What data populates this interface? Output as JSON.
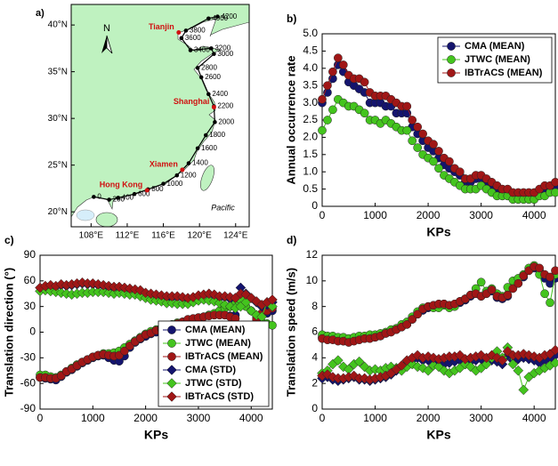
{
  "chart_data": [
    {
      "type": "map",
      "label": "a)",
      "north": "N",
      "xlim": [
        105.8,
        125.5
      ],
      "ylim": [
        18.4,
        42.2
      ],
      "xticks": [
        {
          "value": 108,
          "label": "108°E"
        },
        {
          "value": 112,
          "label": "112°E"
        },
        {
          "value": 116,
          "label": "116°E"
        },
        {
          "value": 120,
          "label": "120°E"
        },
        {
          "value": 124,
          "label": "124°E"
        }
      ],
      "yticks": [
        {
          "value": 20,
          "label": "20°N"
        },
        {
          "value": 25,
          "label": "25°N"
        },
        {
          "value": 30,
          "label": "30°N"
        },
        {
          "value": 35,
          "label": "35°N"
        },
        {
          "value": 40,
          "label": "40°N"
        }
      ],
      "land_color": "#bff2c0",
      "place_color": "#d01010",
      "places": [
        {
          "name": "Tianjin",
          "lon": 117.7,
          "lat": 39.2
        },
        {
          "name": "Shanghai",
          "lon": 121.6,
          "lat": 31.2
        },
        {
          "name": "Xiamen",
          "lon": 118.1,
          "lat": 24.5
        },
        {
          "name": "Hong Kong",
          "lon": 114.2,
          "lat": 22.3
        }
      ],
      "kp": {
        "values": [
          0,
          200,
          400,
          600,
          800,
          1000,
          1200,
          1400,
          1600,
          1800,
          2000,
          2200,
          2400,
          2600,
          2800,
          3000,
          3200,
          3400,
          3600,
          3800,
          4000,
          4200
        ],
        "lon": [
          108.3,
          110.0,
          111.0,
          112.8,
          114.3,
          116.0,
          117.5,
          118.8,
          119.8,
          120.7,
          121.7,
          121.6,
          121.0,
          120.2,
          119.8,
          121.6,
          121.3,
          119.0,
          118.0,
          118.5,
          121.0,
          122.0
        ],
        "lat": [
          21.6,
          21.3,
          21.5,
          21.9,
          22.4,
          23.0,
          23.9,
          25.2,
          26.8,
          28.2,
          29.6,
          31.3,
          32.6,
          34.4,
          35.4,
          36.9,
          37.5,
          37.3,
          38.6,
          39.4,
          40.7,
          40.9
        ]
      },
      "annotation": {
        "text": "Pacific",
        "lon": 122.6,
        "lat": 20.4
      }
    },
    {
      "type": "line",
      "label": "b)",
      "xlabel": "KPs",
      "ylabel": "Annual occurrence rate",
      "legend": "upper right",
      "xlim": [
        0,
        4400
      ],
      "xticks": [
        0,
        1000,
        2000,
        3000,
        4000
      ],
      "ylim": [
        0,
        5
      ],
      "yticks": [
        0,
        0.5,
        {
          "value": 1,
          "label": "1.0"
        },
        1.5,
        {
          "value": 2,
          "label": "2.0"
        },
        2.5,
        {
          "value": 3,
          "label": "3.0"
        },
        3.5,
        {
          "value": 4,
          "label": "4.0"
        },
        4.5,
        {
          "value": 5,
          "label": "5.0"
        }
      ],
      "x": [
        0,
        100,
        200,
        300,
        400,
        500,
        600,
        700,
        800,
        900,
        1000,
        1100,
        1200,
        1300,
        1400,
        1500,
        1600,
        1700,
        1800,
        1900,
        2000,
        2100,
        2200,
        2300,
        2400,
        2500,
        2600,
        2700,
        2800,
        2900,
        3000,
        3100,
        3200,
        3300,
        3400,
        3500,
        3600,
        3700,
        3800,
        3900,
        4000,
        4100,
        4200,
        4300,
        4400
      ],
      "series": [
        {
          "name": "CMA (MEAN)",
          "color": "#14146e",
          "marker": "circle",
          "values": [
            3.0,
            3.3,
            3.7,
            4.1,
            3.9,
            3.6,
            3.5,
            3.4,
            3.3,
            3.0,
            3.0,
            3.0,
            2.9,
            2.9,
            2.7,
            2.7,
            2.7,
            2.3,
            2.1,
            1.9,
            1.7,
            1.6,
            1.4,
            1.2,
            1.1,
            1.0,
            0.9,
            0.7,
            0.7,
            0.8,
            0.8,
            0.7,
            0.6,
            0.5,
            0.4,
            0.4,
            0.3,
            0.3,
            0.3,
            0.3,
            0.3,
            0.4,
            0.5,
            0.5,
            0.6
          ]
        },
        {
          "name": "JTWC (MEAN)",
          "color": "#44c41e",
          "marker": "circle",
          "values": [
            2.2,
            2.5,
            2.8,
            3.1,
            3.0,
            2.9,
            2.9,
            2.8,
            2.7,
            2.5,
            2.5,
            2.4,
            2.5,
            2.4,
            2.3,
            2.2,
            2.2,
            1.9,
            1.7,
            1.5,
            1.4,
            1.3,
            1.1,
            0.9,
            0.8,
            0.7,
            0.6,
            0.5,
            0.5,
            0.5,
            0.6,
            0.5,
            0.4,
            0.3,
            0.3,
            0.3,
            0.2,
            0.2,
            0.2,
            0.2,
            0.2,
            0.3,
            0.3,
            0.4,
            0.4
          ]
        },
        {
          "name": "IBTrACS (MEAN)",
          "color": "#a01616",
          "marker": "circle",
          "values": [
            3.1,
            3.5,
            3.9,
            4.3,
            4.1,
            3.8,
            3.7,
            3.7,
            3.6,
            3.3,
            3.2,
            3.2,
            3.2,
            3.1,
            3.0,
            2.9,
            2.9,
            2.5,
            2.3,
            2.1,
            1.9,
            1.8,
            1.6,
            1.4,
            1.3,
            1.1,
            1.0,
            0.8,
            0.8,
            0.9,
            0.9,
            0.8,
            0.7,
            0.6,
            0.5,
            0.5,
            0.4,
            0.4,
            0.4,
            0.4,
            0.4,
            0.5,
            0.6,
            0.6,
            0.7
          ]
        }
      ]
    },
    {
      "type": "line",
      "label": "c)",
      "xlabel": "KPs",
      "ylabel": "Translation direction (°)",
      "legend": "lower right",
      "xlim": [
        0,
        4400
      ],
      "xticks": [
        0,
        1000,
        2000,
        3000,
        4000
      ],
      "ylim": [
        -90,
        90
      ],
      "yticks": [
        -90,
        -60,
        -30,
        0,
        30,
        60,
        90
      ],
      "x": [
        0,
        100,
        200,
        300,
        400,
        500,
        600,
        700,
        800,
        900,
        1000,
        1100,
        1200,
        1300,
        1400,
        1500,
        1600,
        1700,
        1800,
        1900,
        2000,
        2100,
        2200,
        2300,
        2400,
        2500,
        2600,
        2700,
        2800,
        2900,
        3000,
        3100,
        3200,
        3300,
        3400,
        3500,
        3600,
        3700,
        3800,
        3900,
        4000,
        4100,
        4200,
        4300,
        4400
      ],
      "series": [
        {
          "name": "CMA (MEAN)",
          "color": "#14146e",
          "marker": "circle",
          "values": [
            -53,
            -54,
            -55,
            -56,
            -52,
            -47,
            -44,
            -40,
            -36,
            -33,
            -30,
            -28,
            -27,
            -30,
            -33,
            -34,
            -28,
            -18,
            -12,
            -8,
            -5,
            -2,
            0,
            2,
            5,
            7,
            9,
            10,
            13,
            15,
            16,
            18,
            20,
            20,
            21,
            20,
            19,
            20,
            8,
            2,
            5,
            12,
            20,
            22,
            25
          ]
        },
        {
          "name": "JTWC (MEAN)",
          "color": "#44c41e",
          "marker": "circle",
          "values": [
            -50,
            -50,
            -52,
            -53,
            -50,
            -46,
            -42,
            -38,
            -35,
            -32,
            -29,
            -27,
            -25,
            -25,
            -24,
            -22,
            -18,
            -14,
            -10,
            -6,
            -2,
            1,
            3,
            5,
            7,
            9,
            11,
            12,
            14,
            15,
            17,
            18,
            20,
            22,
            25,
            28,
            30,
            35,
            38,
            30,
            25,
            18,
            12,
            10,
            8
          ]
        },
        {
          "name": "IBTrACS (MEAN)",
          "color": "#a01616",
          "marker": "circle",
          "values": [
            -53,
            -53,
            -54,
            -54,
            -51,
            -46,
            -43,
            -39,
            -35,
            -32,
            -29,
            -27,
            -26,
            -27,
            -28,
            -27,
            -22,
            -16,
            -11,
            -7,
            -3,
            -1,
            2,
            4,
            6,
            8,
            10,
            12,
            15,
            16,
            17,
            18,
            19,
            20,
            20,
            20,
            18,
            16,
            5,
            3,
            8,
            15,
            22,
            25,
            28
          ]
        },
        {
          "name": "CMA (STD)",
          "color": "#14146e",
          "marker": "diamond",
          "values": [
            52,
            53,
            54,
            53,
            55,
            54,
            55,
            56,
            57,
            56,
            56,
            55,
            54,
            53,
            52,
            52,
            51,
            50,
            49,
            48,
            45,
            44,
            43,
            42,
            40,
            40,
            41,
            40,
            39,
            40,
            42,
            43,
            45,
            43,
            40,
            41,
            39,
            40,
            52,
            45,
            40,
            35,
            30,
            32,
            35
          ]
        },
        {
          "name": "JTWC (STD)",
          "color": "#44c41e",
          "marker": "diamond",
          "values": [
            48,
            49,
            48,
            47,
            46,
            45,
            44,
            45,
            46,
            46,
            47,
            47,
            47,
            46,
            45,
            46,
            45,
            44,
            44,
            42,
            40,
            38,
            37,
            36,
            34,
            34,
            33,
            33,
            33,
            35,
            37,
            38,
            37,
            36,
            34,
            32,
            30,
            28,
            30,
            35,
            25,
            20,
            18,
            35,
            30
          ]
        },
        {
          "name": "IBTrACS (STD)",
          "color": "#a01616",
          "marker": "diamond",
          "values": [
            52,
            54,
            55,
            54,
            56,
            55,
            56,
            57,
            58,
            57,
            57,
            56,
            55,
            54,
            53,
            53,
            52,
            51,
            50,
            49,
            46,
            45,
            44,
            43,
            42,
            42,
            42,
            41,
            40,
            41,
            43,
            44,
            45,
            44,
            42,
            42,
            41,
            40,
            45,
            44,
            40,
            36,
            32,
            35,
            38
          ]
        }
      ]
    },
    {
      "type": "line",
      "label": "d)",
      "xlabel": "KPs",
      "ylabel": "Translation speed (m/s)",
      "xlim": [
        0,
        4400
      ],
      "xticks": [
        0,
        1000,
        2000,
        3000,
        4000
      ],
      "ylim": [
        0,
        12
      ],
      "yticks": [
        0,
        2,
        4,
        6,
        8,
        10,
        12
      ],
      "x": [
        0,
        100,
        200,
        300,
        400,
        500,
        600,
        700,
        800,
        900,
        1000,
        1100,
        1200,
        1300,
        1400,
        1500,
        1600,
        1700,
        1800,
        1900,
        2000,
        2100,
        2200,
        2300,
        2400,
        2500,
        2600,
        2700,
        2800,
        2900,
        3000,
        3100,
        3200,
        3300,
        3400,
        3500,
        3600,
        3700,
        3800,
        3900,
        4000,
        4100,
        4200,
        4300,
        4400
      ],
      "series": [
        {
          "name": "CMA (MEAN)",
          "color": "#14146e",
          "marker": "circle",
          "values": [
            5.6,
            5.5,
            5.5,
            5.4,
            5.3,
            5.3,
            5.4,
            5.5,
            5.5,
            5.6,
            5.6,
            5.7,
            5.9,
            6.1,
            6.2,
            6.4,
            6.6,
            7.0,
            7.4,
            7.7,
            7.9,
            8.0,
            8.1,
            8.2,
            8.0,
            8.1,
            8.3,
            8.5,
            8.8,
            9.0,
            8.8,
            9.0,
            9.2,
            8.7,
            8.6,
            8.8,
            9.5,
            9.8,
            10.3,
            10.8,
            11.0,
            10.8,
            10.2,
            9.8,
            10.2
          ]
        },
        {
          "name": "JTWC (MEAN)",
          "color": "#44c41e",
          "marker": "circle",
          "values": [
            5.8,
            5.7,
            5.7,
            5.6,
            5.6,
            5.5,
            5.6,
            5.7,
            5.7,
            5.8,
            5.8,
            5.9,
            6.0,
            6.2,
            6.3,
            6.6,
            6.8,
            7.2,
            7.6,
            7.9,
            8.0,
            7.9,
            7.9,
            8.1,
            7.9,
            8.0,
            8.4,
            8.6,
            8.9,
            9.4,
            9.9,
            9.2,
            9.4,
            9.0,
            8.8,
            9.5,
            10.0,
            10.2,
            10.5,
            11.0,
            11.2,
            10.5,
            9.0,
            8.3,
            10.5
          ]
        },
        {
          "name": "IBTrACS (MEAN)",
          "color": "#a01616",
          "marker": "circle",
          "values": [
            5.5,
            5.4,
            5.4,
            5.3,
            5.3,
            5.2,
            5.3,
            5.4,
            5.5,
            5.5,
            5.6,
            5.7,
            5.9,
            6.0,
            6.2,
            6.4,
            6.6,
            7.0,
            7.4,
            7.8,
            8.0,
            8.1,
            8.2,
            8.2,
            8.1,
            8.2,
            8.4,
            8.6,
            8.9,
            9.0,
            8.8,
            9.0,
            9.3,
            8.8,
            8.7,
            8.9,
            9.4,
            9.8,
            10.4,
            10.8,
            11.1,
            11.0,
            10.5,
            10.3,
            10.8
          ]
        },
        {
          "name": "CMA (STD)",
          "color": "#14146e",
          "marker": "diamond",
          "values": [
            2.4,
            2.5,
            2.3,
            2.2,
            2.3,
            2.4,
            2.5,
            2.3,
            2.3,
            2.2,
            2.3,
            2.4,
            2.5,
            2.7,
            3.0,
            3.3,
            3.6,
            3.8,
            4.0,
            3.8,
            3.8,
            3.6,
            3.5,
            3.5,
            3.6,
            3.7,
            3.8,
            3.5,
            3.7,
            3.8,
            3.9,
            3.6,
            3.8,
            3.7,
            3.5,
            4.2,
            3.8,
            3.9,
            4.0,
            3.9,
            3.8,
            3.6,
            3.8,
            3.9,
            4.2
          ]
        },
        {
          "name": "JTWC (STD)",
          "color": "#44c41e",
          "marker": "diamond",
          "values": [
            2.8,
            3.0,
            3.5,
            3.8,
            3.3,
            3.1,
            3.5,
            3.7,
            3.3,
            3.0,
            3.1,
            3.0,
            3.2,
            3.3,
            3.2,
            3.0,
            3.3,
            3.5,
            3.3,
            3.2,
            3.0,
            3.4,
            3.3,
            3.0,
            2.8,
            3.0,
            3.2,
            3.5,
            3.3,
            3.0,
            3.2,
            3.5,
            4.0,
            4.5,
            4.0,
            4.8,
            3.5,
            3.0,
            1.5,
            2.5,
            2.8,
            3.0,
            3.2,
            3.4,
            3.6
          ]
        },
        {
          "name": "IBTrACS (STD)",
          "color": "#a01616",
          "marker": "diamond",
          "values": [
            2.6,
            2.7,
            2.5,
            2.4,
            2.4,
            2.5,
            2.6,
            2.4,
            2.4,
            2.3,
            2.4,
            2.5,
            2.6,
            2.8,
            3.1,
            3.4,
            3.8,
            4.0,
            4.2,
            4.0,
            4.1,
            4.0,
            3.9,
            4.0,
            4.1,
            4.1,
            4.2,
            3.9,
            4.0,
            4.1,
            4.2,
            4.0,
            4.2,
            4.0,
            3.8,
            4.5,
            4.2,
            4.2,
            4.3,
            4.2,
            4.1,
            4.0,
            4.2,
            4.3,
            4.6
          ]
        }
      ]
    }
  ]
}
